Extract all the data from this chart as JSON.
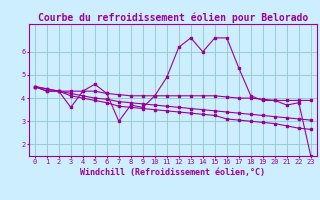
{
  "title": "Courbe du refroidissement éolien pour Belorado",
  "xlabel": "Windchill (Refroidissement éolien,°C)",
  "background_color": "#cceeff",
  "grid_color": "#99cccc",
  "line_color": "#990099",
  "x_hours": [
    0,
    1,
    2,
    3,
    4,
    5,
    6,
    7,
    8,
    9,
    10,
    11,
    12,
    13,
    14,
    15,
    16,
    17,
    18,
    19,
    20,
    21,
    22,
    23
  ],
  "line1_y": [
    4.5,
    4.3,
    4.3,
    3.6,
    4.3,
    4.6,
    4.2,
    3.0,
    3.7,
    3.6,
    4.1,
    4.9,
    6.2,
    6.6,
    6.0,
    6.6,
    6.6,
    5.3,
    4.1,
    3.9,
    3.9,
    3.7,
    3.8,
    1.5
  ],
  "line2_y": [
    4.5,
    4.3,
    4.3,
    4.3,
    4.3,
    4.3,
    4.2,
    4.15,
    4.1,
    4.1,
    4.1,
    4.1,
    4.1,
    4.1,
    4.1,
    4.1,
    4.05,
    4.0,
    4.0,
    3.95,
    3.9,
    3.9,
    3.9,
    3.9
  ],
  "line3_y": [
    4.5,
    4.4,
    4.3,
    4.1,
    4.0,
    3.9,
    3.8,
    3.65,
    3.6,
    3.55,
    3.5,
    3.45,
    3.4,
    3.35,
    3.3,
    3.25,
    3.1,
    3.05,
    3.0,
    2.95,
    2.9,
    2.8,
    2.7,
    2.65
  ],
  "line4_y": [
    4.5,
    4.4,
    4.3,
    4.2,
    4.1,
    4.0,
    3.95,
    3.85,
    3.8,
    3.75,
    3.7,
    3.65,
    3.6,
    3.55,
    3.5,
    3.45,
    3.4,
    3.35,
    3.3,
    3.25,
    3.2,
    3.15,
    3.1,
    3.05
  ],
  "ylim": [
    1.5,
    7.2
  ],
  "xlim": [
    -0.5,
    23.5
  ],
  "yticks": [
    2,
    3,
    4,
    5,
    6
  ],
  "xtick_labels": [
    "0",
    "1",
    "2",
    "3",
    "4",
    "5",
    "6",
    "7",
    "8",
    "9",
    "10",
    "11",
    "12",
    "13",
    "14",
    "15",
    "16",
    "17",
    "18",
    "19",
    "20",
    "21",
    "22",
    "23"
  ],
  "title_fontsize": 7,
  "axis_fontsize": 6,
  "tick_fontsize": 5
}
